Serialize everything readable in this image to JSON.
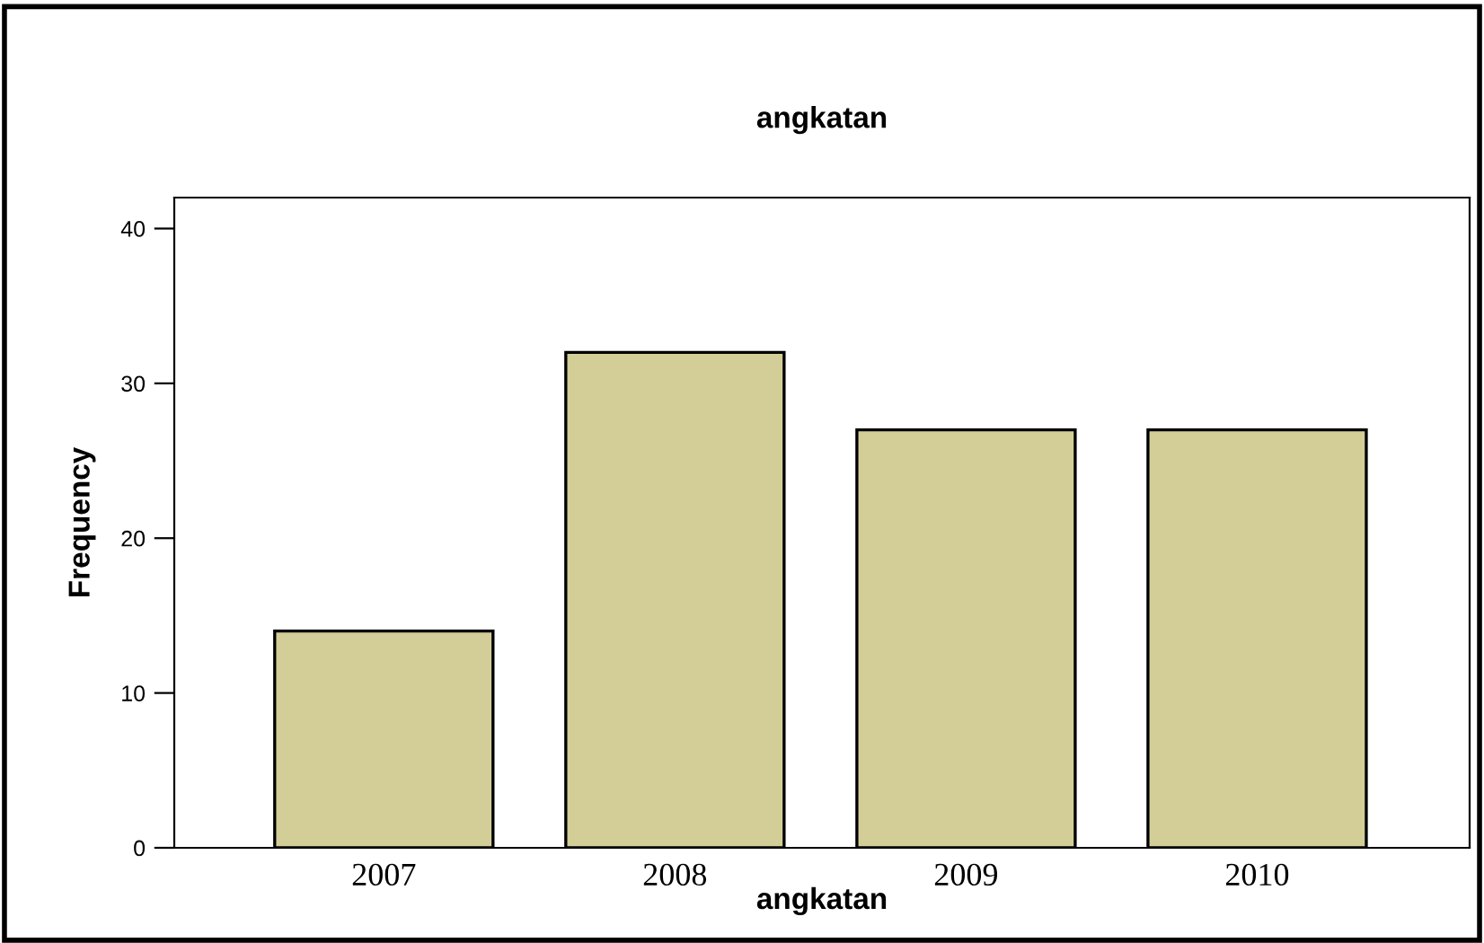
{
  "chart_data": {
    "type": "bar",
    "title": "angkatan",
    "xlabel": "angkatan",
    "ylabel": "Frequency",
    "categories": [
      "2007",
      "2008",
      "2009",
      "2010"
    ],
    "values": [
      14,
      32,
      27,
      27
    ],
    "color": "#d3ce97",
    "ylim": [
      0,
      42
    ],
    "yticks": [
      0,
      10,
      20,
      30,
      40
    ],
    "grid": false,
    "legend": false
  }
}
